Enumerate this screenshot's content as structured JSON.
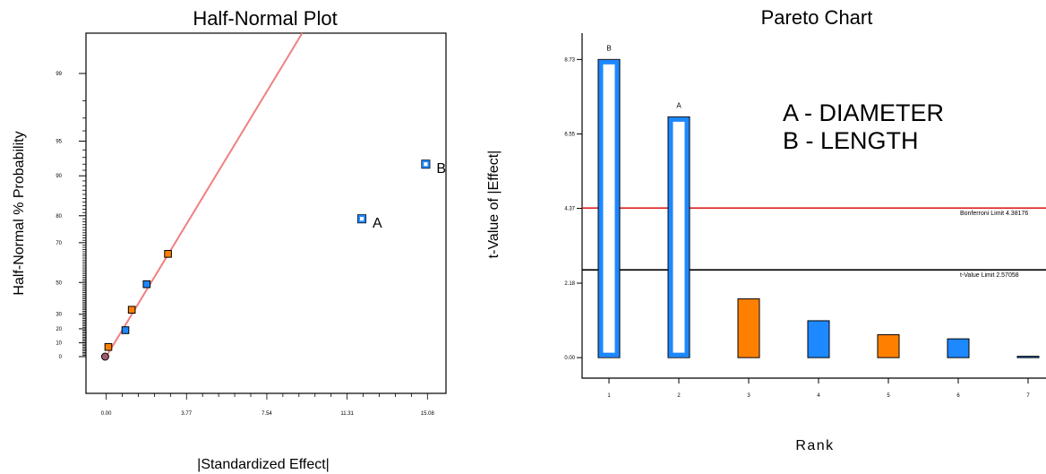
{
  "chart_data": [
    {
      "type": "scatter",
      "title": "Half-Normal Plot",
      "xlabel": "|Standardized Effect|",
      "ylabel": "Half-Normal % Probability",
      "x_ticks": [
        "0.00",
        "3.77",
        "7.54",
        "11.31",
        "15.08"
      ],
      "y_ticks": [
        "0",
        "10",
        "20",
        "30",
        "50",
        "70",
        "80",
        "90",
        "95",
        "99"
      ],
      "xlim": [
        -0.95,
        15.95
      ],
      "grid": false,
      "fit_line": {
        "color": "#f08080",
        "from": [
          0.0,
          0.0
        ],
        "to": [
          9.2,
          99.8
        ]
      },
      "points": [
        {
          "x": 15.0,
          "y": 92.0,
          "label": "B",
          "color": "#1e88ff",
          "style": "open"
        },
        {
          "x": 12.0,
          "y": 79.0,
          "label": "A",
          "color": "#1e88ff",
          "style": "open"
        },
        {
          "x": 2.9,
          "y": 65.0,
          "label": "",
          "color": "#ff8000",
          "style": "filled"
        },
        {
          "x": 1.9,
          "y": 49.0,
          "label": "",
          "color": "#1e88ff",
          "style": "filled"
        },
        {
          "x": 1.2,
          "y": 33.0,
          "label": "",
          "color": "#ff8000",
          "style": "filled"
        },
        {
          "x": 0.9,
          "y": 19.0,
          "label": "",
          "color": "#1e88ff",
          "style": "filled"
        },
        {
          "x": 0.1,
          "y": 7.0,
          "label": "",
          "color": "#ff8000",
          "style": "filled"
        },
        {
          "x": -0.05,
          "y": 0.0,
          "label": "",
          "color": "#a05a6e",
          "style": "circle"
        }
      ]
    },
    {
      "type": "bar",
      "title": "Pareto Chart",
      "xlabel": "Rank",
      "ylabel": "t-Value of |Effect|",
      "categories": [
        "1",
        "2",
        "3",
        "4",
        "5",
        "6",
        "7"
      ],
      "values": [
        8.73,
        7.05,
        1.72,
        1.08,
        0.67,
        0.55,
        0.03
      ],
      "bar_colors": [
        "#1e88ff",
        "#1e88ff",
        "#ff8000",
        "#1e88ff",
        "#ff8000",
        "#1e88ff",
        "#1e88ff"
      ],
      "bar_styles": [
        "open",
        "open",
        "filled",
        "filled",
        "filled",
        "filled",
        "filled"
      ],
      "bar_letters": [
        "B",
        "A",
        "",
        "",
        "",
        "",
        ""
      ],
      "y_ticks": [
        "0.00",
        "2.18",
        "4.37",
        "6.55",
        "8.73"
      ],
      "ylim": [
        -0.6,
        9.5
      ],
      "grid": false,
      "limits": [
        {
          "name": "Bonferroni Limit 4.38176",
          "value": 4.38,
          "color": "#e02020"
        },
        {
          "name": "t-Value Limit 2.57058",
          "value": 2.57,
          "color": "#000000"
        }
      ],
      "annotation": [
        "A - DIAMETER",
        "B - LENGTH"
      ]
    }
  ]
}
